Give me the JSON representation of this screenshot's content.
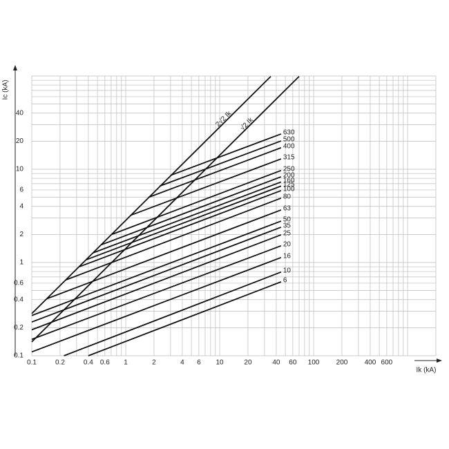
{
  "chart_data": {
    "type": "line",
    "log_x": true,
    "log_y": true,
    "xlabel": "Ik (kA)",
    "ylabel": "Ic (kA)",
    "xlim": [
      0.1,
      2000
    ],
    "ylim": [
      0.1,
      100
    ],
    "xticks": [
      0.1,
      0.2,
      0.4,
      0.6,
      1,
      2,
      4,
      6,
      10,
      20,
      40,
      60,
      100,
      200,
      400,
      600
    ],
    "yticks": [
      0.1,
      0.2,
      0.4,
      0.6,
      1,
      2,
      4,
      6,
      10,
      20,
      40
    ],
    "xgrid": [
      0.1,
      0.2,
      0.3,
      0.4,
      0.5,
      0.6,
      0.7,
      0.8,
      0.9,
      1,
      2,
      3,
      4,
      5,
      6,
      7,
      8,
      9,
      10,
      20,
      30,
      40,
      50,
      60,
      70,
      80,
      90,
      100,
      200,
      300,
      400,
      500,
      600,
      700,
      800,
      900,
      1000,
      2000
    ],
    "ygrid": [
      0.1,
      0.2,
      0.3,
      0.4,
      0.5,
      0.6,
      0.7,
      0.8,
      0.9,
      1,
      2,
      3,
      4,
      5,
      6,
      7,
      8,
      9,
      10,
      20,
      30,
      40,
      50,
      60,
      70,
      80,
      90,
      100
    ],
    "grid": true,
    "color": "#111111",
    "series": [
      {
        "name": "2√2 Ik",
        "x": [
          0.1,
          35
        ],
        "values": [
          0.283,
          99
        ]
      },
      {
        "name": "√2 Ik",
        "x": [
          0.1,
          70
        ],
        "values": [
          0.141,
          99
        ]
      },
      {
        "name": "630",
        "x": [
          3.0,
          45
        ],
        "values": [
          8.6,
          23.9
        ]
      },
      {
        "name": "500",
        "x": [
          2.3,
          45
        ],
        "values": [
          6.6,
          20.1
        ]
      },
      {
        "name": "400",
        "x": [
          1.75,
          45
        ],
        "values": [
          5.0,
          17
        ]
      },
      {
        "name": "315",
        "x": [
          1.12,
          45
        ],
        "values": [
          3.2,
          12.9
        ]
      },
      {
        "name": "250",
        "x": [
          0.71,
          45
        ],
        "values": [
          2.0,
          9.7
        ]
      },
      {
        "name": "200",
        "x": [
          0.55,
          45
        ],
        "values": [
          1.55,
          8.3
        ]
      },
      {
        "name": "160",
        "x": [
          0.45,
          45
        ],
        "values": [
          1.27,
          7.3
        ]
      },
      {
        "name": "125",
        "x": [
          0.38,
          45
        ],
        "values": [
          1.07,
          6.6
        ]
      },
      {
        "name": "100",
        "x": [
          0.32,
          45
        ],
        "values": [
          0.9,
          5.9
        ]
      },
      {
        "name": "80",
        "x": [
          0.23,
          45
        ],
        "values": [
          0.65,
          4.9
        ]
      },
      {
        "name": "63",
        "x": [
          0.146,
          45
        ],
        "values": [
          0.41,
          3.66
        ]
      },
      {
        "name": "50",
        "x": [
          0.1,
          45
        ],
        "values": [
          0.27,
          2.78
        ]
      },
      {
        "name": "35",
        "x": [
          0.1,
          45
        ],
        "values": [
          0.23,
          2.39
        ]
      },
      {
        "name": "25",
        "x": [
          0.1,
          45
        ],
        "values": [
          0.19,
          1.98
        ]
      },
      {
        "name": "20",
        "x": [
          0.1,
          45
        ],
        "values": [
          0.15,
          1.51
        ]
      },
      {
        "name": "16",
        "x": [
          0.1,
          45
        ],
        "values": [
          0.11,
          1.13
        ]
      },
      {
        "name": "10",
        "x": [
          0.22,
          45
        ],
        "values": [
          0.1,
          0.79
        ]
      },
      {
        "name": "6",
        "x": [
          0.4,
          45
        ],
        "values": [
          0.1,
          0.62
        ]
      }
    ]
  }
}
